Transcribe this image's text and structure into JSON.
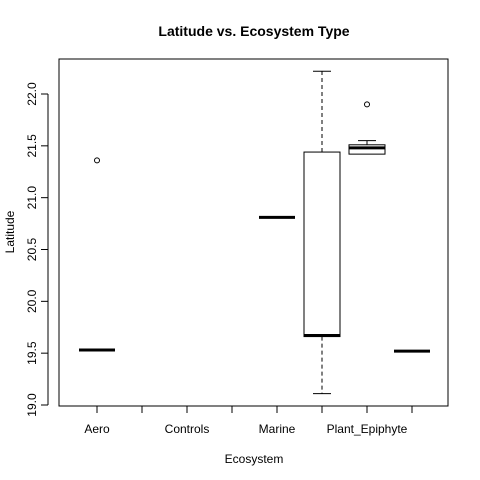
{
  "chart_data": {
    "type": "boxplot",
    "title": "Latitude vs. Ecosystem Type",
    "xlabel": "Ecosystem",
    "ylabel": "Latitude",
    "ylim": [
      19.0,
      22.2
    ],
    "y_ticks": [
      "19.0",
      "19.5",
      "20.0",
      "20.5",
      "21.0",
      "21.5",
      "22.0"
    ],
    "categories": [
      "Aero",
      "",
      "Controls",
      "",
      "Marine",
      "",
      "Plant_Epiphyte",
      ""
    ],
    "category_labels_shown": [
      "Aero",
      "Controls",
      "Marine",
      "Plant_Epiphyte"
    ],
    "boxes": [
      {
        "category_index": 0,
        "min": 19.53,
        "q1": 19.53,
        "median": 19.53,
        "q3": 19.53,
        "max": 19.53,
        "outliers": [
          21.36
        ]
      },
      {
        "category_index": 4,
        "min": 20.81,
        "q1": 20.81,
        "median": 20.81,
        "q3": 20.81,
        "max": 20.81,
        "outliers": []
      },
      {
        "category_index": 5,
        "min": 19.11,
        "q1": 19.66,
        "median": 19.67,
        "q3": 21.44,
        "max": 22.22,
        "outliers": []
      },
      {
        "category_index": 6,
        "min": 21.42,
        "q1": 21.42,
        "median": 21.48,
        "q3": 21.51,
        "max": 21.55,
        "outliers": [
          21.9
        ]
      },
      {
        "category_index": 7,
        "min": 19.52,
        "q1": 19.52,
        "median": 19.52,
        "q3": 19.52,
        "max": 19.52,
        "outliers": []
      }
    ],
    "grid": false
  }
}
